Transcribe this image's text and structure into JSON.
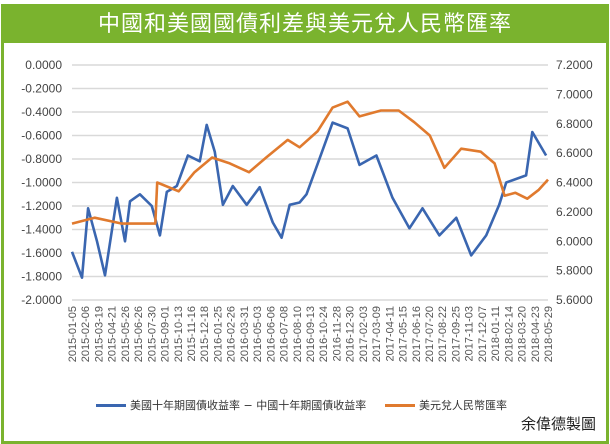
{
  "chart_data": {
    "type": "line",
    "title": "中國和美國國債利差與美元兌人民幣匯率",
    "y_left": {
      "ylim": [
        -2.0,
        0.0
      ],
      "ticks": [
        "0.0000",
        "-0.2000",
        "-0.4000",
        "-0.6000",
        "-0.8000",
        "-1.0000",
        "-1.2000",
        "-1.4000",
        "-1.6000",
        "-1.8000",
        "-2.0000"
      ]
    },
    "y_right": {
      "ylim": [
        5.6,
        7.2
      ],
      "ticks": [
        "7.2000",
        "7.0000",
        "6.8000",
        "6.6000",
        "6.4000",
        "6.2000",
        "6.0000",
        "5.8000",
        "5.6000"
      ]
    },
    "x_tick_labels": [
      "2015-01-05",
      "2015-02-06",
      "2015-03-19",
      "2015-04-21",
      "2015-05-26",
      "2015-06-26",
      "2015-07-30",
      "2015-09-01",
      "2015-10-13",
      "2015-11-16",
      "2015-12-18",
      "2016-01-25",
      "2016-02-26",
      "2016-03-31",
      "2016-05-03",
      "2016-06-06",
      "2016-07-08",
      "2016-08-10",
      "2016-09-13",
      "2016-10-24",
      "2016-11-28",
      "2016-12-30",
      "2017-02-03",
      "2017-03-09",
      "2017-04-11",
      "2017-05-15",
      "2017-06-16",
      "2017-07-20",
      "2017-08-22",
      "2017-09-25",
      "2017-11-03",
      "2017-12-07",
      "2018-01-11",
      "2018-02-14",
      "2018-03-20",
      "2018-04-23",
      "2018-05-29"
    ],
    "grid": true,
    "legend_position": "bottom",
    "series": [
      {
        "name": "美國十年期國債收益率 − 中國十年期國債收益率",
        "axis": "left",
        "color": "#3a66b0",
        "points": [
          [
            "2015-01-05",
            -1.59
          ],
          [
            "2015-01-31",
            -1.81
          ],
          [
            "2015-02-16",
            -1.22
          ],
          [
            "2015-03-11",
            -1.5
          ],
          [
            "2015-04-01",
            -1.79
          ],
          [
            "2015-05-02",
            -1.13
          ],
          [
            "2015-05-23",
            -1.5
          ],
          [
            "2015-06-05",
            -1.16
          ],
          [
            "2015-07-01",
            -1.1
          ],
          [
            "2015-08-01",
            -1.2
          ],
          [
            "2015-08-22",
            -1.45
          ],
          [
            "2015-09-09",
            -1.08
          ],
          [
            "2015-10-05",
            -1.03
          ],
          [
            "2015-11-03",
            -0.77
          ],
          [
            "2015-12-04",
            -0.82
          ],
          [
            "2015-12-22",
            -0.51
          ],
          [
            "2016-01-12",
            -0.74
          ],
          [
            "2016-02-02",
            -1.19
          ],
          [
            "2016-02-28",
            -1.03
          ],
          [
            "2016-04-04",
            -1.19
          ],
          [
            "2016-05-08",
            -1.04
          ],
          [
            "2016-06-11",
            -1.34
          ],
          [
            "2016-07-04",
            -1.47
          ],
          [
            "2016-07-25",
            -1.19
          ],
          [
            "2016-08-20",
            -1.17
          ],
          [
            "2016-09-07",
            -1.1
          ],
          [
            "2016-10-06",
            -0.84
          ],
          [
            "2016-11-14",
            -0.49
          ],
          [
            "2016-12-23",
            -0.54
          ],
          [
            "2017-01-23",
            -0.85
          ],
          [
            "2017-03-08",
            -0.77
          ],
          [
            "2017-04-19",
            -1.13
          ],
          [
            "2017-06-02",
            -1.39
          ],
          [
            "2017-07-06",
            -1.22
          ],
          [
            "2017-08-19",
            -1.45
          ],
          [
            "2017-10-02",
            -1.3
          ],
          [
            "2017-11-10",
            -1.62
          ],
          [
            "2017-12-19",
            -1.45
          ],
          [
            "2018-01-22",
            -1.19
          ],
          [
            "2018-02-09",
            -1.0
          ],
          [
            "2018-04-02",
            -0.94
          ],
          [
            "2018-04-18",
            -0.57
          ],
          [
            "2018-05-24",
            -0.77
          ]
        ]
      },
      {
        "name": "美元兌人民幣匯率",
        "axis": "right",
        "color": "#e07a2e",
        "points": [
          [
            "2015-01-05",
            6.12
          ],
          [
            "2015-03-05",
            6.16
          ],
          [
            "2015-05-15",
            6.12
          ],
          [
            "2015-08-10",
            6.12
          ],
          [
            "2015-08-15",
            6.4
          ],
          [
            "2015-10-10",
            6.34
          ],
          [
            "2015-11-20",
            6.47
          ],
          [
            "2016-01-05",
            6.57
          ],
          [
            "2016-02-20",
            6.53
          ],
          [
            "2016-04-10",
            6.47
          ],
          [
            "2016-05-25",
            6.57
          ],
          [
            "2016-07-20",
            6.69
          ],
          [
            "2016-08-20",
            6.64
          ],
          [
            "2016-10-06",
            6.75
          ],
          [
            "2016-11-14",
            6.91
          ],
          [
            "2016-12-23",
            6.95
          ],
          [
            "2017-01-23",
            6.85
          ],
          [
            "2017-03-20",
            6.89
          ],
          [
            "2017-05-05",
            6.89
          ],
          [
            "2017-06-15",
            6.81
          ],
          [
            "2017-07-25",
            6.72
          ],
          [
            "2017-09-01",
            6.5
          ],
          [
            "2017-10-15",
            6.63
          ],
          [
            "2017-12-05",
            6.61
          ],
          [
            "2018-01-10",
            6.53
          ],
          [
            "2018-02-05",
            6.31
          ],
          [
            "2018-03-05",
            6.33
          ],
          [
            "2018-04-05",
            6.29
          ],
          [
            "2018-05-05",
            6.35
          ],
          [
            "2018-05-29",
            6.42
          ]
        ]
      }
    ]
  },
  "credit": "余偉德製圖"
}
